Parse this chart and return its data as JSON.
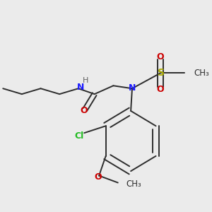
{
  "background_color": "#ebebeb",
  "bond_color": "#2d2d2d",
  "figsize": [
    3.0,
    3.0
  ],
  "dpi": 100,
  "label_colors": {
    "N": "#1a1aff",
    "O": "#cc0000",
    "S": "#aaaa00",
    "Cl": "#22bb22",
    "C": "#2d2d2d",
    "H": "#606060"
  }
}
